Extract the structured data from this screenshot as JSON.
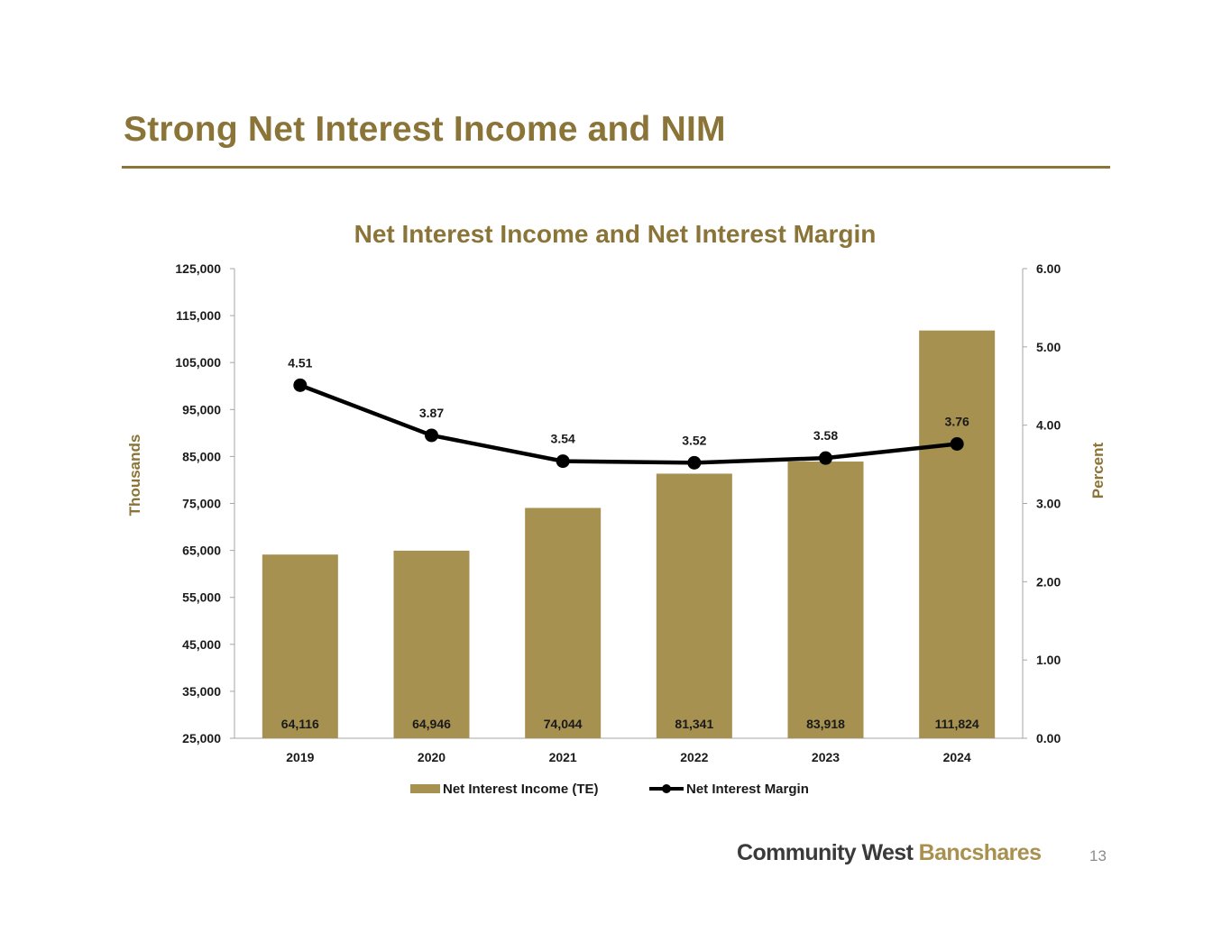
{
  "slide": {
    "title": "Strong Net Interest Income and NIM",
    "page_number": "13"
  },
  "logo": {
    "word1": "Community West ",
    "word2": "Bancshares"
  },
  "colors": {
    "accent": "#8a7437",
    "bar": "#a69150",
    "line": "#000000",
    "axis": "#a6a6a6",
    "label": "#1a1a1a"
  },
  "chart_data": {
    "type": "bar",
    "title": "Net Interest Income and Net Interest Margin",
    "categories": [
      "2019",
      "2020",
      "2021",
      "2022",
      "2023",
      "2024"
    ],
    "series": [
      {
        "name": "Net Interest Income (TE)",
        "type": "bar",
        "axis": "left",
        "values": [
          64116,
          64946,
          74044,
          81341,
          83918,
          111824
        ],
        "labels": [
          "64,116",
          "64,946",
          "74,044",
          "81,341",
          "83,918",
          "111,824"
        ]
      },
      {
        "name": "Net Interest Margin",
        "type": "line",
        "axis": "right",
        "values": [
          4.51,
          3.87,
          3.54,
          3.52,
          3.58,
          3.76
        ],
        "labels": [
          "4.51",
          "3.87",
          "3.54",
          "3.52",
          "3.58",
          "3.76"
        ]
      }
    ],
    "ylabel": "Thousands",
    "y2label": "Percent",
    "ylim": [
      25000,
      125000
    ],
    "y2lim": [
      0,
      6
    ],
    "yticks": [
      "25,000",
      "35,000",
      "45,000",
      "55,000",
      "65,000",
      "75,000",
      "85,000",
      "95,000",
      "105,000",
      "115,000",
      "125,000"
    ],
    "y2ticks": [
      "0.00",
      "1.00",
      "2.00",
      "3.00",
      "4.00",
      "5.00",
      "6.00"
    ],
    "grid": false,
    "legend": "bottom"
  }
}
